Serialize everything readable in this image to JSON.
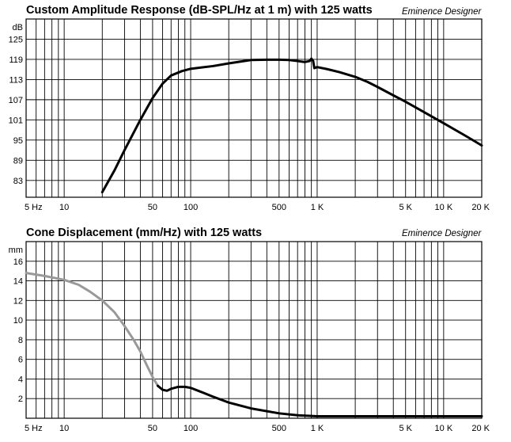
{
  "chart_data": [
    {
      "type": "line",
      "title": "Custom Amplitude Response (dB-SPL/Hz at 1 m) with 125 watts",
      "brand": "Eminence Designer",
      "ylabel": "dB",
      "x_scale": "log",
      "xlim": [
        5,
        20000
      ],
      "ylim": [
        78,
        131
      ],
      "y_ticks": [
        83,
        89,
        95,
        101,
        107,
        113,
        119,
        125
      ],
      "y_tick_labels": [
        "83",
        "89",
        "95",
        "101",
        "107",
        "113",
        "119",
        "125"
      ],
      "x_ticks": [
        5,
        10,
        50,
        100,
        500,
        1000,
        5000,
        10000,
        20000
      ],
      "x_tick_labels": [
        "5 Hz",
        "10",
        "50",
        "100",
        "500",
        "1 K",
        "5 K",
        "10 K",
        "20 K"
      ],
      "series": [
        {
          "color": "#000000",
          "points": [
            [
              20,
              79.5
            ],
            [
              25,
              86
            ],
            [
              30,
              92
            ],
            [
              40,
              101
            ],
            [
              50,
              107.5
            ],
            [
              60,
              111.8
            ],
            [
              70,
              114.2
            ],
            [
              85,
              115.5
            ],
            [
              100,
              116.2
            ],
            [
              150,
              117
            ],
            [
              200,
              117.8
            ],
            [
              300,
              118.8
            ],
            [
              400,
              118.9
            ],
            [
              500,
              118.9
            ],
            [
              600,
              118.8
            ],
            [
              700,
              118.5
            ],
            [
              800,
              118.2
            ],
            [
              870,
              118.5
            ],
            [
              900,
              119.2
            ],
            [
              930,
              118.5
            ],
            [
              950,
              116.4
            ],
            [
              1000,
              116.7
            ],
            [
              1200,
              116.1
            ],
            [
              1500,
              115.2
            ],
            [
              2000,
              113.8
            ],
            [
              2500,
              112.3
            ],
            [
              3000,
              110.8
            ],
            [
              4000,
              108.3
            ],
            [
              5000,
              106.4
            ],
            [
              7000,
              103.3
            ],
            [
              10000,
              100
            ],
            [
              15000,
              96.2
            ],
            [
              20000,
              93.4
            ]
          ]
        }
      ]
    },
    {
      "type": "line",
      "title": "Cone Displacement (mm/Hz) with 125 watts",
      "brand": "Eminence Designer",
      "ylabel": "mm",
      "x_scale": "log",
      "xlim": [
        5,
        20000
      ],
      "ylim": [
        0,
        18
      ],
      "y_ticks": [
        2,
        4,
        6,
        8,
        10,
        12,
        14,
        16
      ],
      "y_tick_labels": [
        "2",
        "4",
        "6",
        "8",
        "10",
        "12",
        "14",
        "16"
      ],
      "x_ticks": [
        5,
        10,
        50,
        100,
        500,
        1000,
        5000,
        10000,
        20000
      ],
      "x_tick_labels": [
        "5 Hz",
        "10",
        "50",
        "100",
        "500",
        "1 K",
        "5 K",
        "10 K",
        "20 K"
      ],
      "series": [
        {
          "color": "#999999",
          "points": [
            [
              5,
              14.8
            ],
            [
              7,
              14.5
            ],
            [
              10,
              14.1
            ],
            [
              13,
              13.6
            ],
            [
              16,
              12.9
            ],
            [
              20,
              12
            ],
            [
              25,
              10.8
            ],
            [
              30,
              9.4
            ],
            [
              35,
              8.1
            ],
            [
              40,
              6.8
            ],
            [
              45,
              5.4
            ],
            [
              50,
              4.2
            ],
            [
              55,
              3.3
            ]
          ]
        },
        {
          "color": "#000000",
          "points": [
            [
              55,
              3.3
            ],
            [
              60,
              2.9
            ],
            [
              65,
              2.8
            ],
            [
              70,
              3
            ],
            [
              80,
              3.2
            ],
            [
              90,
              3.2
            ],
            [
              100,
              3.1
            ],
            [
              120,
              2.7
            ],
            [
              150,
              2.2
            ],
            [
              200,
              1.6
            ],
            [
              300,
              1
            ],
            [
              500,
              0.5
            ],
            [
              700,
              0.3
            ],
            [
              1000,
              0.2
            ],
            [
              2000,
              0.2
            ],
            [
              5000,
              0.2
            ],
            [
              10000,
              0.2
            ],
            [
              20000,
              0.2
            ]
          ]
        }
      ]
    }
  ]
}
